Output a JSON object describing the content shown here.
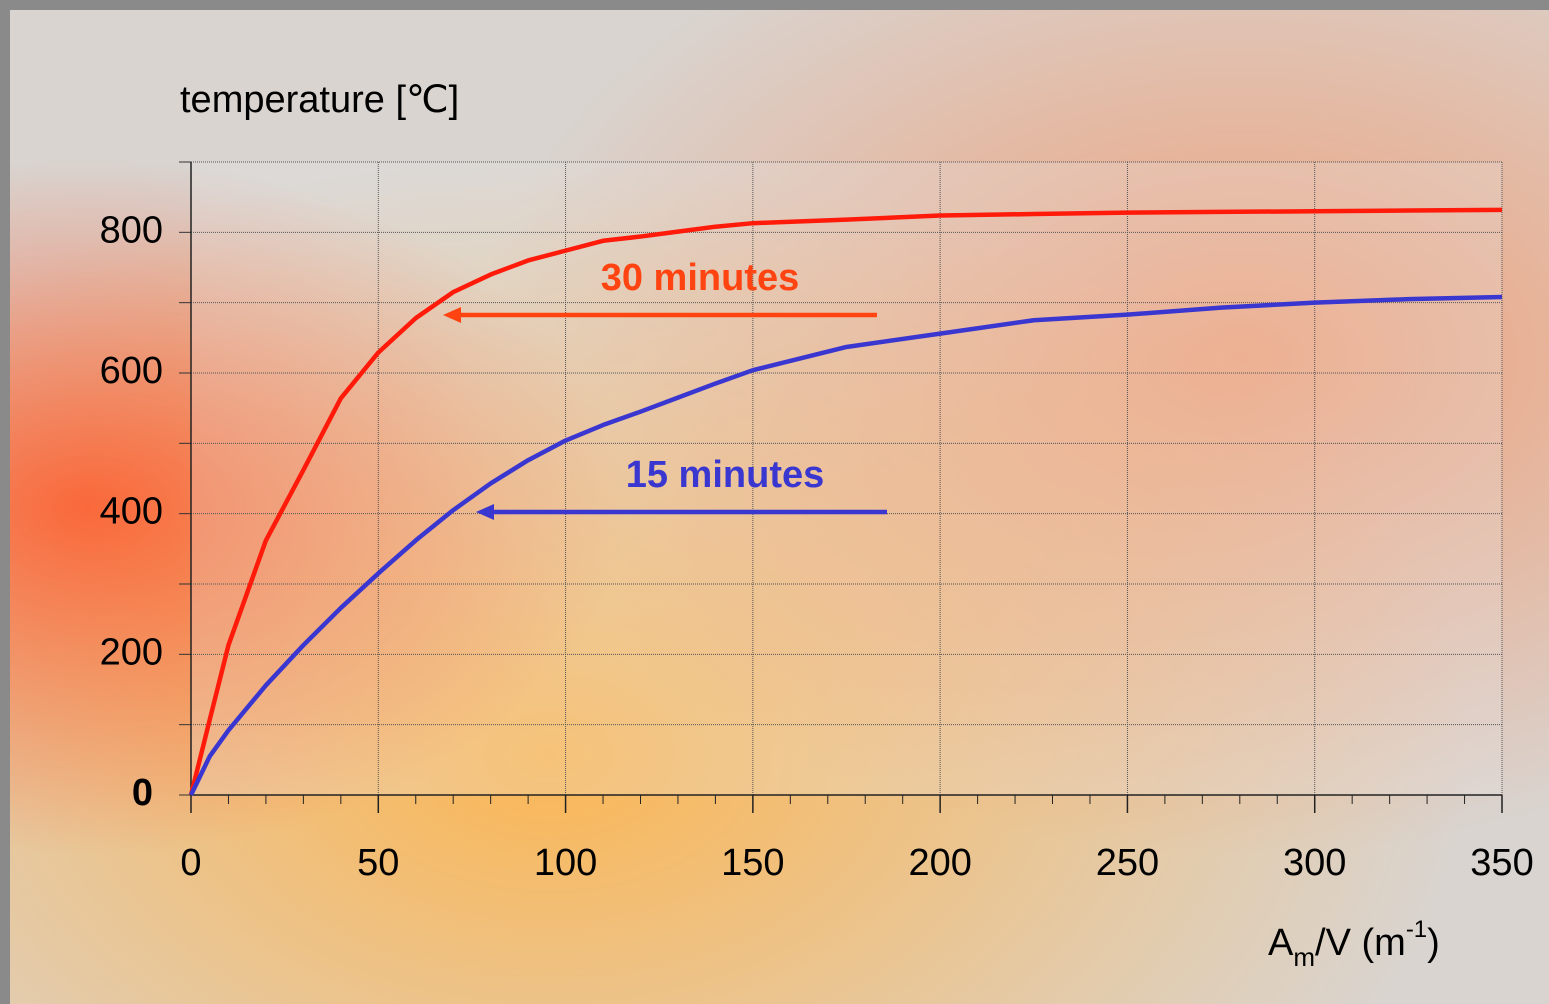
{
  "chart_data": {
    "type": "line",
    "ylabel": "temperature [℃]",
    "xlabel": {
      "base": "A",
      "sub": "m",
      "mid": "/V (m",
      "sup": "-1",
      "end": ")"
    },
    "x": [
      0,
      5,
      10,
      20,
      30,
      40,
      50,
      60,
      70,
      80,
      90,
      100,
      110,
      120,
      130,
      140,
      150,
      175,
      200,
      225,
      250,
      275,
      300,
      325,
      350
    ],
    "series": [
      {
        "name": "30 minutes",
        "color": "#ff1a0a",
        "label_color": "#ff4411",
        "values": [
          0,
          107,
          213,
          362,
          462,
          564,
          629,
          678,
          715,
          740,
          760,
          774,
          788,
          794,
          801,
          808,
          813,
          818,
          824,
          826,
          828,
          829,
          830,
          831,
          832
        ]
      },
      {
        "name": "15 minutes",
        "color": "#3a36d0",
        "label_color": "#3a36d0",
        "values": [
          0,
          55,
          92,
          156,
          213,
          266,
          315,
          362,
          405,
          443,
          476,
          504,
          526,
          545,
          565,
          585,
          604,
          637,
          656,
          675,
          683,
          693,
          700,
          705,
          708
        ]
      }
    ],
    "xlim": [
      0,
      350
    ],
    "xticks": [
      0,
      50,
      100,
      150,
      200,
      250,
      300,
      350
    ],
    "ylim": [
      0,
      900
    ],
    "yticks": [
      0,
      200,
      400,
      600,
      800
    ],
    "minor_yticks": [
      100,
      300,
      500,
      700,
      900
    ],
    "grid": true
  }
}
